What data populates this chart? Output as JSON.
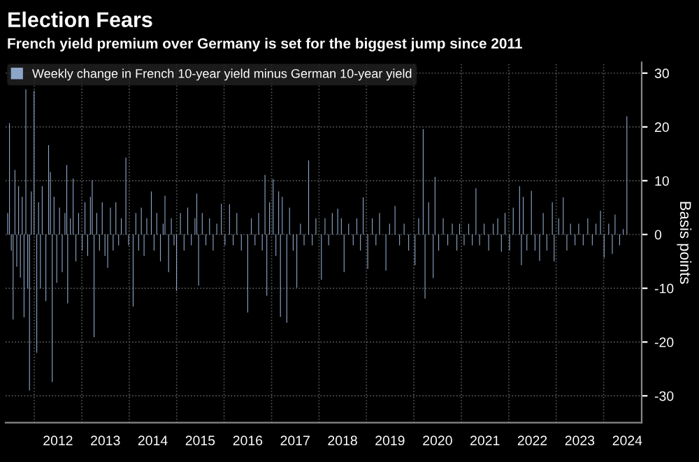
{
  "chart_data": {
    "type": "bar",
    "title": "Election Fears",
    "subtitle": "French yield premium over Germany is set for the biggest jump since 2011",
    "ylabel": "Basis points",
    "series": [
      {
        "name": "Weekly change in French 10-year yield minus German 10-year yield",
        "color": "#8da6c8",
        "x": [
          "2011-06-10",
          "2011-06-24",
          "2011-07-08",
          "2011-07-22",
          "2011-08-05",
          "2011-08-19",
          "2011-09-02",
          "2011-09-16",
          "2011-09-30",
          "2011-10-14",
          "2011-10-28",
          "2011-11-11",
          "2011-11-25",
          "2011-12-09",
          "2011-12-30",
          "2012-01-20",
          "2012-02-03",
          "2012-02-17",
          "2012-03-02",
          "2012-03-30",
          "2012-04-20",
          "2012-05-04",
          "2012-05-18",
          "2012-06-01",
          "2012-06-22",
          "2012-07-13",
          "2012-08-03",
          "2012-08-24",
          "2012-09-07",
          "2012-09-14",
          "2012-10-05",
          "2012-10-26",
          "2012-11-16",
          "2012-12-07",
          "2013-01-04",
          "2013-01-25",
          "2013-02-15",
          "2013-03-08",
          "2013-03-22",
          "2013-04-05",
          "2013-04-26",
          "2013-05-17",
          "2013-06-07",
          "2013-06-28",
          "2013-07-19",
          "2013-08-09",
          "2013-08-30",
          "2013-09-20",
          "2013-10-11",
          "2013-11-01",
          "2013-12-06",
          "2013-12-27",
          "2014-01-31",
          "2014-02-21",
          "2014-03-14",
          "2014-04-04",
          "2014-04-25",
          "2014-05-16",
          "2014-06-20",
          "2014-07-11",
          "2014-08-01",
          "2014-08-29",
          "2014-09-19",
          "2014-10-03",
          "2014-10-31",
          "2014-11-21",
          "2014-12-12",
          "2014-12-31",
          "2015-01-30",
          "2015-02-27",
          "2015-03-27",
          "2015-04-24",
          "2015-05-22",
          "2015-06-05",
          "2015-06-19",
          "2015-07-17",
          "2015-08-14",
          "2015-09-11",
          "2015-10-09",
          "2015-11-06",
          "2015-12-11",
          "2016-01-08",
          "2016-02-12",
          "2016-03-11",
          "2016-04-08",
          "2016-05-13",
          "2016-07-01",
          "2016-07-29",
          "2016-08-26",
          "2016-09-23",
          "2016-10-21",
          "2016-11-11",
          "2016-11-25",
          "2016-12-16",
          "2017-01-13",
          "2017-02-03",
          "2017-02-24",
          "2017-03-10",
          "2017-03-24",
          "2017-04-28",
          "2017-05-19",
          "2017-06-16",
          "2017-07-14",
          "2017-08-11",
          "2017-09-08",
          "2017-10-13",
          "2017-11-10",
          "2017-12-08",
          "2018-01-19",
          "2018-02-16",
          "2018-03-16",
          "2018-04-13",
          "2018-05-25",
          "2018-06-22",
          "2018-07-13",
          "2018-08-17",
          "2018-09-21",
          "2018-10-19",
          "2018-11-16",
          "2018-12-07",
          "2019-01-11",
          "2019-02-15",
          "2019-03-15",
          "2019-04-12",
          "2019-05-31",
          "2019-06-28",
          "2019-08-09",
          "2019-09-13",
          "2019-10-18",
          "2019-11-22",
          "2020-01-10",
          "2020-02-07",
          "2020-03-13",
          "2020-03-27",
          "2020-04-24",
          "2020-05-29",
          "2020-06-12",
          "2020-07-10",
          "2020-08-14",
          "2020-09-18",
          "2020-10-23",
          "2020-11-27",
          "2020-12-18",
          "2021-01-22",
          "2021-02-26",
          "2021-03-26",
          "2021-04-23",
          "2021-05-21",
          "2021-06-25",
          "2021-07-30",
          "2021-09-03",
          "2021-10-08",
          "2021-11-05",
          "2021-12-03",
          "2022-01-07",
          "2022-02-04",
          "2022-03-25",
          "2022-04-08",
          "2022-04-22",
          "2022-05-20",
          "2022-06-24",
          "2022-07-22",
          "2022-08-26",
          "2022-09-23",
          "2022-10-21",
          "2022-12-02",
          "2022-12-16",
          "2023-01-20",
          "2023-02-24",
          "2023-03-24",
          "2023-04-21",
          "2023-05-26",
          "2023-06-23",
          "2023-07-28",
          "2023-09-01",
          "2023-10-06",
          "2023-11-03",
          "2023-12-08",
          "2024-01-05",
          "2024-02-09",
          "2024-03-08",
          "2024-03-29",
          "2024-05-03",
          "2024-05-31",
          "2024-06-28"
        ],
        "values": [
          4,
          20.7,
          -3,
          -15.8,
          12,
          -6,
          9,
          -8,
          7,
          -15.4,
          27,
          -10,
          -29,
          8,
          26.7,
          -22,
          6,
          -10,
          9,
          -12.4,
          16.6,
          11.6,
          -27.4,
          7,
          -9,
          5,
          -7,
          4,
          12.9,
          -12.8,
          3,
          10.4,
          -5,
          4,
          -3,
          6,
          -4,
          7,
          10.1,
          -19.1,
          4,
          -3,
          6,
          -4,
          -6.2,
          5,
          -3,
          6,
          -2,
          3,
          14.3,
          -2,
          -13.4,
          4,
          -3,
          5,
          -4,
          3,
          8,
          -3,
          4,
          -5,
          2,
          7.2,
          -7,
          3,
          -2,
          -10.5,
          4,
          -3,
          5,
          -2,
          3,
          7.6,
          -9.5,
          4,
          -2,
          3,
          -3,
          2,
          5.7,
          -2,
          5.6,
          -2,
          4,
          -3,
          -14.5,
          3,
          -2,
          4,
          -3,
          11.1,
          -11.4,
          6,
          10.3,
          -4,
          8,
          -15.3,
          7,
          -16.4,
          5,
          -3,
          -9.9,
          2,
          -2,
          13.8,
          -2,
          3,
          -8.4,
          3,
          -2,
          4,
          4.8,
          3,
          -7,
          2,
          -2,
          3,
          -3,
          6.9,
          -6.4,
          3,
          -2,
          4,
          -6.7,
          2,
          5.3,
          -2,
          2,
          -3,
          -5.7,
          3,
          19.6,
          -11.9,
          6,
          -8.1,
          10.7,
          -3,
          3,
          -2,
          2,
          -3,
          2,
          -2,
          2,
          -2,
          8.6,
          -2,
          2,
          -3,
          2,
          3,
          -3.2,
          4,
          -3,
          5,
          9,
          -5.7,
          7,
          -3,
          8.1,
          -3,
          -4.9,
          4,
          -3,
          6,
          -5,
          3,
          6.9,
          -3,
          2,
          -2,
          2,
          -2,
          3,
          -2,
          2,
          4.4,
          -4.3,
          2,
          -3.6,
          3.7,
          -2,
          1,
          22
        ]
      }
    ],
    "xlim": [
      "2011-05-25",
      "2024-10-20"
    ],
    "xticks": [
      {
        "value": "2012-01-01",
        "label": null
      },
      {
        "value": "2012-07-01",
        "label": "2012"
      },
      {
        "value": "2013-01-01",
        "label": null
      },
      {
        "value": "2013-07-01",
        "label": "2013"
      },
      {
        "value": "2014-01-01",
        "label": null
      },
      {
        "value": "2014-07-01",
        "label": "2014"
      },
      {
        "value": "2015-01-01",
        "label": null
      },
      {
        "value": "2015-07-01",
        "label": "2015"
      },
      {
        "value": "2016-01-01",
        "label": null
      },
      {
        "value": "2016-07-01",
        "label": "2016"
      },
      {
        "value": "2017-01-01",
        "label": null
      },
      {
        "value": "2017-07-01",
        "label": "2017"
      },
      {
        "value": "2018-01-01",
        "label": null
      },
      {
        "value": "2018-07-01",
        "label": "2018"
      },
      {
        "value": "2019-01-01",
        "label": null
      },
      {
        "value": "2019-07-01",
        "label": "2019"
      },
      {
        "value": "2020-01-01",
        "label": null
      },
      {
        "value": "2020-07-01",
        "label": "2020"
      },
      {
        "value": "2021-01-01",
        "label": null
      },
      {
        "value": "2021-07-01",
        "label": "2021"
      },
      {
        "value": "2022-01-01",
        "label": null
      },
      {
        "value": "2022-07-01",
        "label": "2022"
      },
      {
        "value": "2023-01-01",
        "label": null
      },
      {
        "value": "2023-07-01",
        "label": "2023"
      },
      {
        "value": "2024-01-01",
        "label": null
      },
      {
        "value": "2024-07-01",
        "label": "2024"
      }
    ],
    "ylim": [
      -35,
      32
    ],
    "yticks": [
      -30,
      -20,
      -10,
      0,
      10,
      20,
      30
    ],
    "grid": true,
    "legend": "top left"
  }
}
